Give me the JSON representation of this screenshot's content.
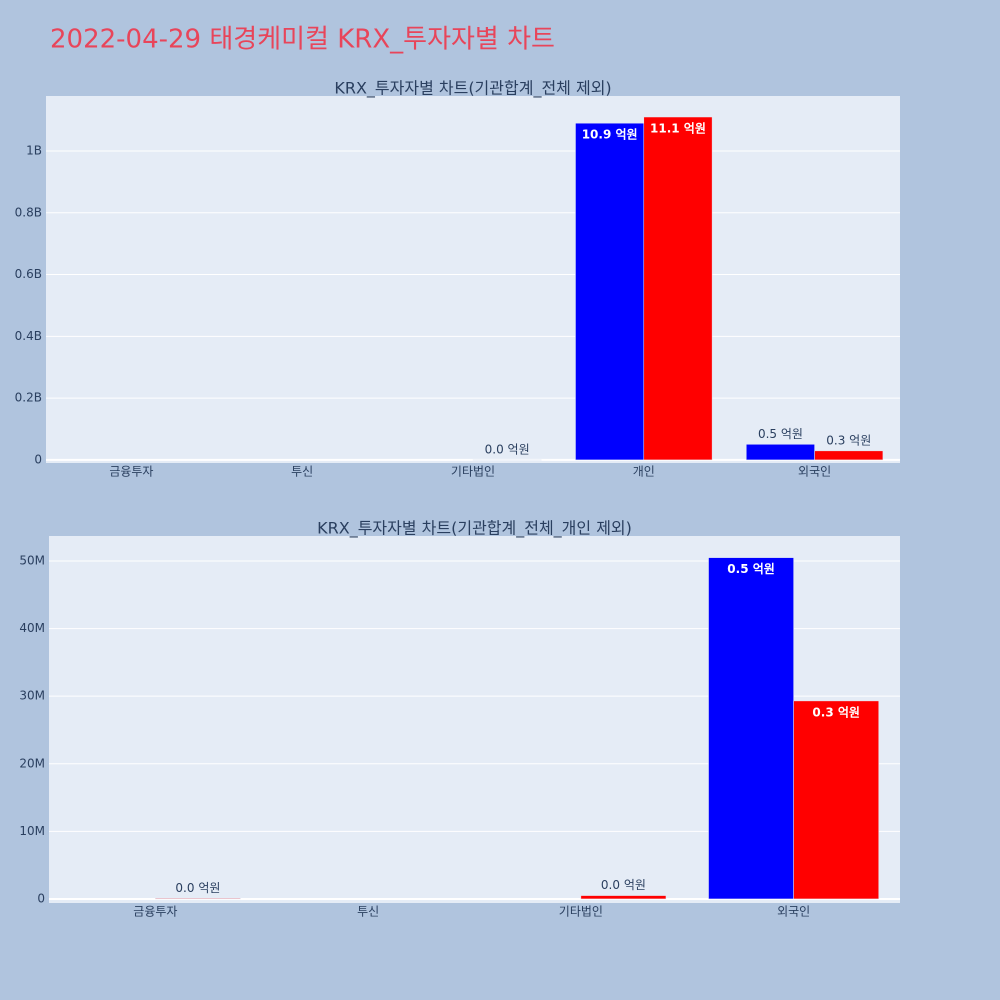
{
  "title": "2022-04-29 태경케미컬 KRX_투자자별 차트",
  "chart_data": [
    {
      "type": "bar",
      "title": "KRX_투자자별 차트(기관합계_전체 제외)",
      "categories": [
        "금융투자",
        "투신",
        "기타법인",
        "개인",
        "외국인"
      ],
      "series": [
        {
          "color": "#0000ff",
          "values": [
            null,
            null,
            null,
            1090000000,
            50500000
          ],
          "value_labels": [
            null,
            null,
            null,
            "10.9 억원",
            "0.5 억원"
          ]
        },
        {
          "color": "#ff0000",
          "values": [
            null,
            null,
            500000,
            1110000000,
            29300000
          ],
          "value_labels": [
            null,
            null,
            "0.0 억원",
            "11.1 억원",
            "0.3 억원"
          ]
        }
      ],
      "ylim": [
        -10000000,
        1178000000
      ],
      "yticks": [
        0,
        {
          "value": 200000000,
          "label": "0.2B"
        },
        {
          "value": 400000000,
          "label": "0.4B"
        },
        {
          "value": 600000000,
          "label": "0.6B"
        },
        {
          "value": 800000000,
          "label": "0.8B"
        },
        {
          "value": 1000000000,
          "label": "1B"
        }
      ],
      "grid": true
    },
    {
      "type": "bar",
      "title": "KRX_투자자별 차트(기관합계_전체_개인 제외)",
      "categories": [
        "금융투자",
        "투신",
        "기타법인",
        "외국인"
      ],
      "series": [
        {
          "color": "#0000ff",
          "values": [
            null,
            null,
            null,
            50500000
          ],
          "value_labels": [
            null,
            null,
            null,
            "0.5 억원"
          ]
        },
        {
          "color": "#ff0000",
          "values": [
            100000,
            null,
            500000,
            29300000
          ],
          "value_labels": [
            "0.0 억원",
            null,
            "0.0 억원",
            "0.3 억원"
          ]
        }
      ],
      "ylim": [
        -600000,
        53700000
      ],
      "yticks": [
        0,
        {
          "value": 10000000,
          "label": "10M"
        },
        {
          "value": 20000000,
          "label": "20M"
        },
        {
          "value": 30000000,
          "label": "30M"
        },
        {
          "value": 40000000,
          "label": "40M"
        },
        {
          "value": 50000000,
          "label": "50M"
        }
      ],
      "grid": true
    }
  ]
}
